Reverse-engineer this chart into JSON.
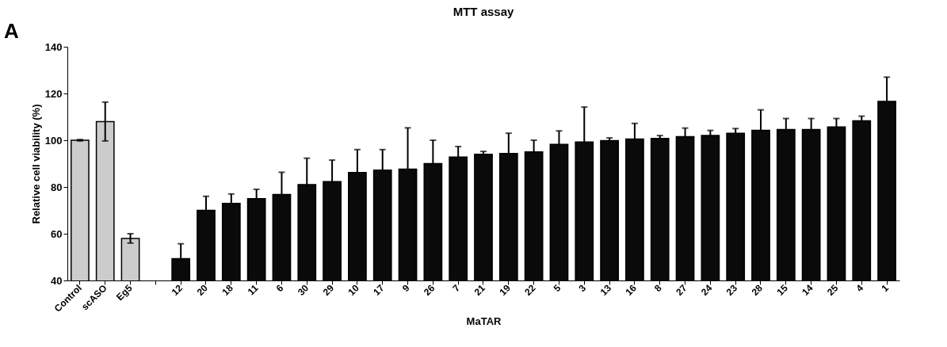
{
  "chart_data": {
    "type": "bar",
    "title": "MTT assay",
    "xlabel": "MaTAR",
    "ylabel": "Relative cell viability (%)",
    "annotations": [
      "A"
    ],
    "categories": [
      "Control",
      "scASO",
      "Eg5",
      null,
      "12",
      "20",
      "18",
      "11",
      "6",
      "30",
      "29",
      "10",
      "17",
      "9",
      "26",
      "7",
      "21",
      "19",
      "22",
      "5",
      "3",
      "13",
      "16",
      "8",
      "27",
      "24",
      "23",
      "28",
      "15",
      "14",
      "25",
      "4",
      "1"
    ],
    "values": [
      100,
      108,
      58,
      null,
      49.3,
      70,
      73,
      75,
      76.8,
      81,
      82.3,
      86.2,
      87.2,
      87.6,
      90,
      92.8,
      94,
      94.3,
      95,
      98.2,
      99.2,
      99.8,
      100.5,
      100.8,
      101.5,
      102,
      103,
      104.2,
      104.6,
      104.6,
      105.7,
      108.3,
      116.6
    ],
    "errors": [
      0.3,
      8.3,
      2,
      null,
      [
        49.3,
        55.7
      ],
      [
        70,
        76
      ],
      [
        73,
        77
      ],
      [
        75,
        79
      ],
      [
        76.8,
        86.3
      ],
      [
        81,
        92.3
      ],
      [
        82.3,
        91.5
      ],
      [
        86.2,
        96
      ],
      [
        87.2,
        96
      ],
      [
        87.6,
        105.3
      ],
      [
        90,
        100
      ],
      [
        92.8,
        97.3
      ],
      [
        94,
        95.2
      ],
      [
        94.3,
        103
      ],
      [
        95,
        100
      ],
      [
        98.2,
        104
      ],
      [
        99.2,
        114.2
      ],
      [
        99.8,
        101
      ],
      [
        100.5,
        107.2
      ],
      [
        100.8,
        102
      ],
      [
        101.5,
        105.2
      ],
      [
        102,
        104.2
      ],
      [
        103,
        105
      ],
      [
        104.2,
        113
      ],
      [
        104.6,
        109.3
      ],
      [
        104.6,
        109.3
      ],
      [
        105.7,
        109.3
      ],
      [
        108.3,
        110.3
      ],
      [
        116.6,
        127
      ]
    ],
    "colors": [
      "#cccccc",
      "#cccccc",
      "#cccccc",
      "#0a0a0a",
      "#0a0a0a",
      "#0a0a0a",
      "#0a0a0a",
      "#0a0a0a",
      "#0a0a0a",
      "#0a0a0a",
      "#0a0a0a",
      "#0a0a0a",
      "#0a0a0a",
      "#0a0a0a",
      "#0a0a0a",
      "#0a0a0a",
      "#0a0a0a",
      "#0a0a0a",
      "#0a0a0a",
      "#0a0a0a",
      "#0a0a0a",
      "#0a0a0a",
      "#0a0a0a",
      "#0a0a0a",
      "#0a0a0a",
      "#0a0a0a",
      "#0a0a0a",
      "#0a0a0a",
      "#0a0a0a",
      "#0a0a0a",
      "#0a0a0a",
      "#0a0a0a",
      "#0a0a0a"
    ],
    "ylim": [
      40,
      140
    ],
    "yticks": [
      40,
      60,
      80,
      100,
      120,
      140
    ],
    "grid": false
  }
}
